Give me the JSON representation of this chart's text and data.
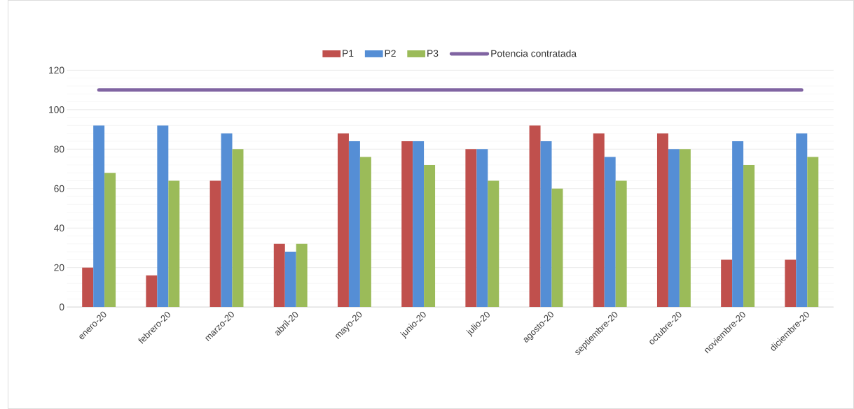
{
  "chart_data": {
    "type": "bar",
    "categories": [
      "enero-20",
      "febrero-20",
      "marzo-20",
      "abril-20",
      "mayo-20",
      "junio-20",
      "julio-20",
      "agosto-20",
      "septiembre-20",
      "octubre-20",
      "noviembre-20",
      "diciembre-20"
    ],
    "series": [
      {
        "name": "P1",
        "color": "#c0504d",
        "values": [
          20,
          16,
          64,
          32,
          88,
          84,
          80,
          92,
          88,
          88,
          24,
          24
        ]
      },
      {
        "name": "P2",
        "color": "#558ed5",
        "values": [
          92,
          92,
          88,
          28,
          84,
          84,
          80,
          84,
          76,
          80,
          84,
          88
        ]
      },
      {
        "name": "P3",
        "color": "#9bbb59",
        "values": [
          68,
          64,
          80,
          32,
          76,
          72,
          64,
          60,
          64,
          80,
          72,
          76
        ]
      },
      {
        "name": "Potencia contratada",
        "type": "line",
        "color": "#8064a2",
        "values": [
          110,
          110,
          110,
          110,
          110,
          110,
          110,
          110,
          110,
          110,
          110,
          110
        ]
      }
    ],
    "ylim": [
      0,
      120
    ],
    "yticks": [
      0,
      20,
      40,
      60,
      80,
      100,
      120
    ],
    "grid": "y",
    "legend": "top"
  }
}
